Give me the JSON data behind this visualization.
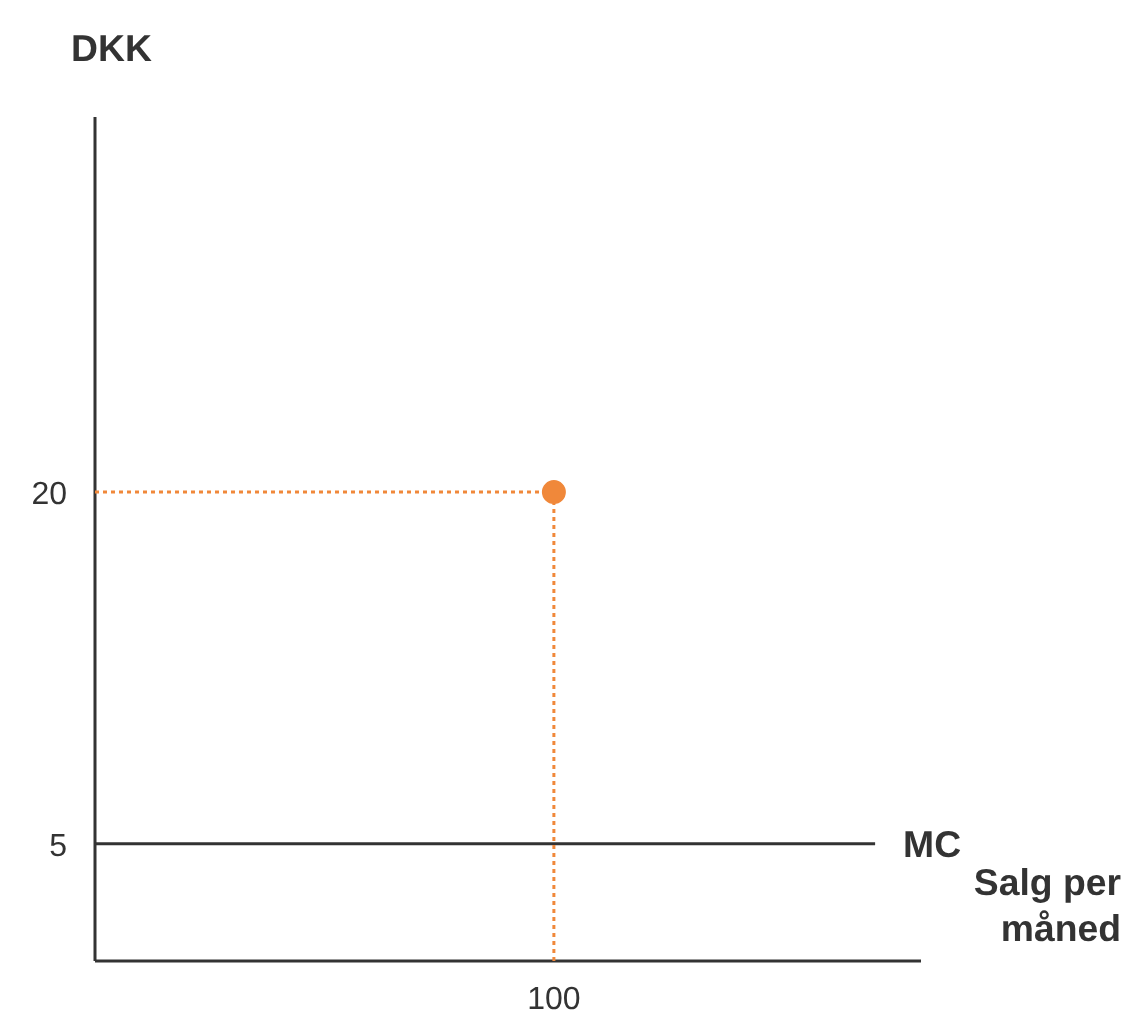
{
  "chart_data": {
    "type": "line",
    "xlabel": "Salg per måned",
    "ylabel": "DKK",
    "categories": [
      null,
      null,
      null,
      null,
      null,
      null,
      null,
      null,
      null,
      null,
      "100",
      null,
      null,
      null,
      null,
      null,
      null,
      null
    ],
    "ylim": [
      0,
      36
    ],
    "yticks": [
      5,
      20
    ],
    "grid": false,
    "series": [
      {
        "name": "MC",
        "color": "#333333",
        "values": [
          5,
          5,
          5,
          5,
          5,
          5,
          5,
          5,
          5,
          5,
          5,
          5,
          5,
          5,
          5,
          5,
          5,
          5
        ],
        "line_style": "solid"
      },
      {
        "color": "#f0883a",
        "values": [
          20,
          20,
          20,
          20,
          20,
          20,
          20,
          20,
          20,
          20,
          20,
          null,
          null,
          null,
          null,
          null,
          null,
          null
        ],
        "line_style": "dotted"
      },
      {
        "type": "lollipop",
        "color": "#f0883a",
        "values": [
          null,
          null,
          null,
          null,
          null,
          null,
          null,
          null,
          null,
          null,
          20,
          null,
          null,
          null,
          null,
          null,
          null,
          null
        ],
        "marker": "circle",
        "line_style": "dotted"
      }
    ]
  }
}
